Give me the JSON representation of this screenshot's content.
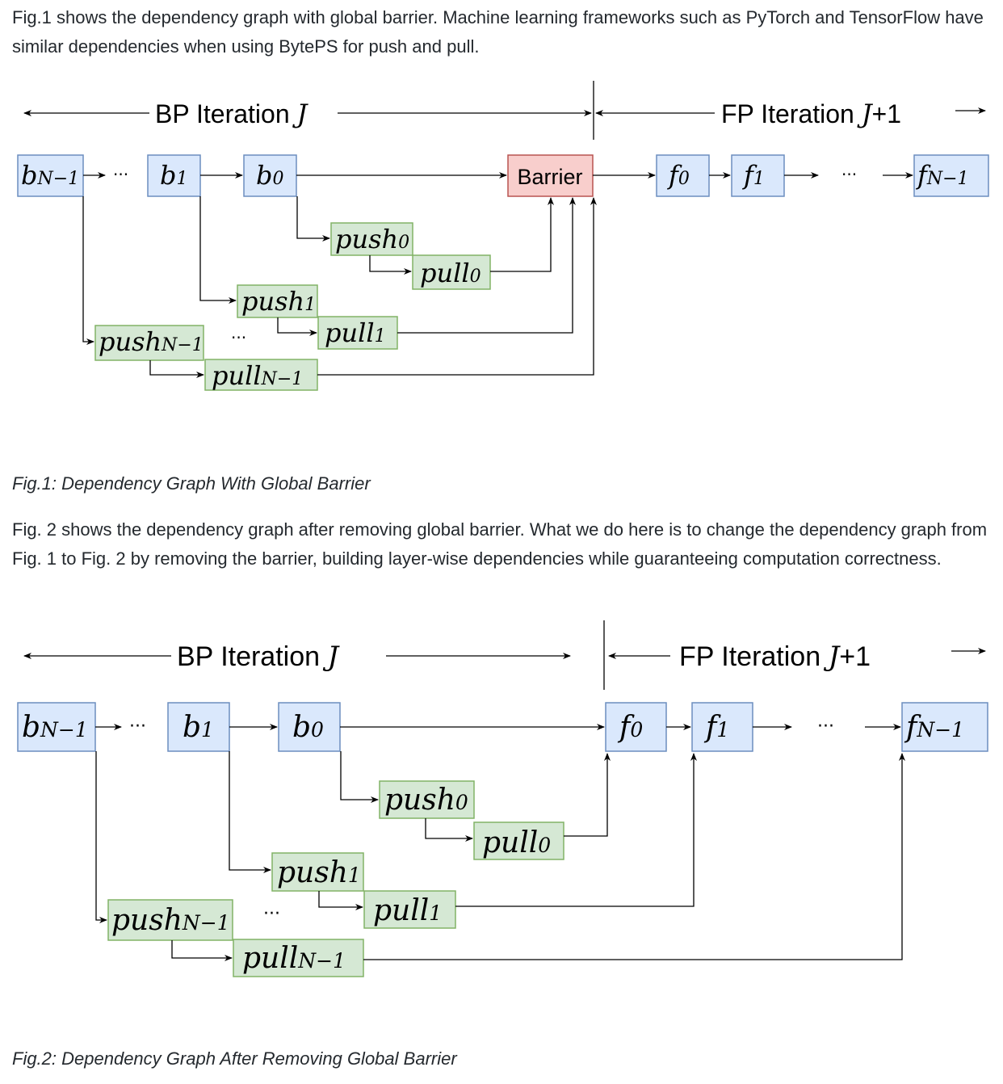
{
  "paragraph1": "Fig.1 shows the dependency graph with global barrier. Machine learning frameworks such as PyTorch and TensorFlow have similar dependencies when using BytePS for push and pull.",
  "caption1": "Fig.1: Dependency Graph With Global Barrier",
  "paragraph2": "Fig. 2 shows the dependency graph after removing global barrier. What we do here is to change the dependency graph from Fig. 1 to Fig. 2 by removing the barrier, building layer-wise dependencies while guaranteeing computation correctness.",
  "caption2": "Fig.2: Dependency Graph After Removing Global Barrier",
  "labels": {
    "bp_text": "BP Iteration ",
    "bp_var": "J",
    "fp_text": "FP Iteration ",
    "fp_var": "J",
    "fp_suffix": "+1",
    "barrier": "Barrier",
    "ellipsis": "···",
    "b": "b",
    "f": "f",
    "push": "push",
    "pull": "pull",
    "sub_n1": "N−1",
    "sub_1": "1",
    "sub_0": "0"
  }
}
